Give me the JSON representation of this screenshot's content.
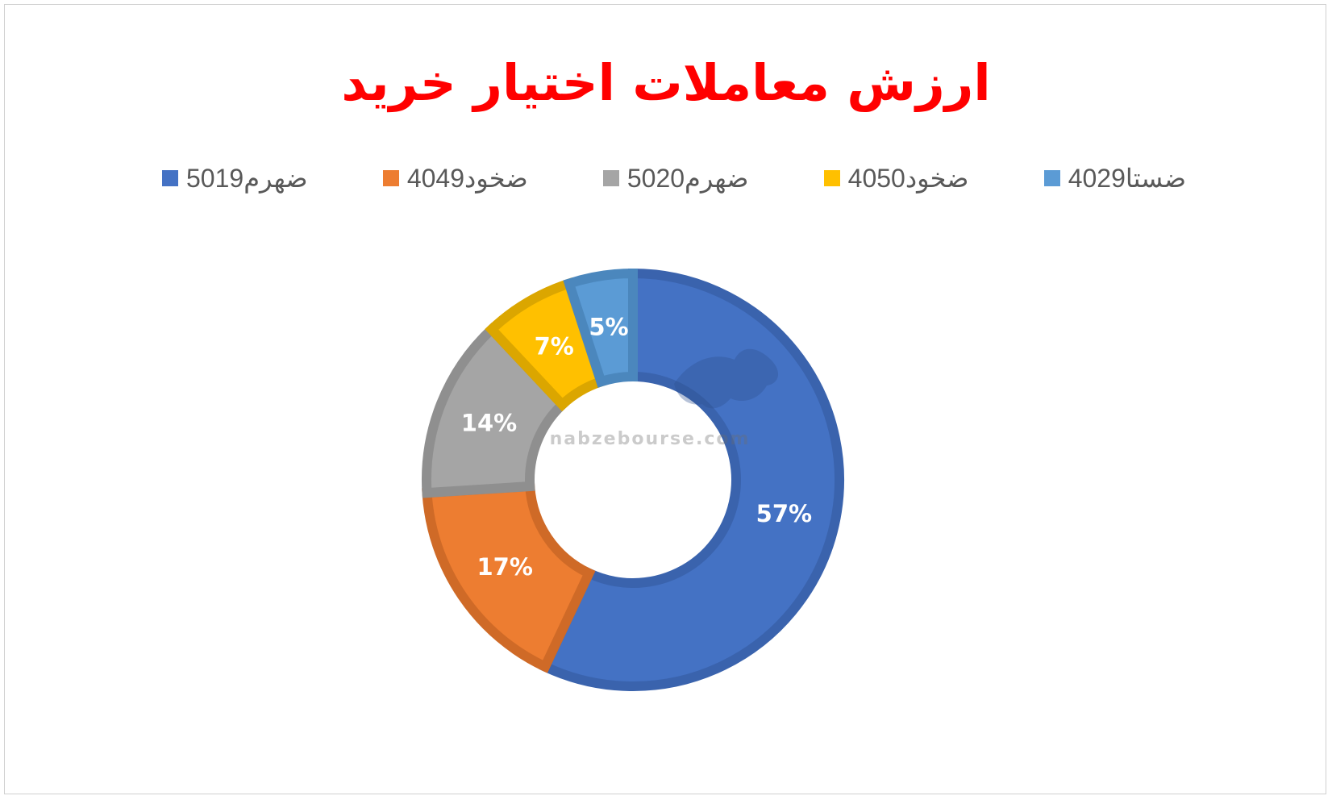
{
  "chart_data": {
    "type": "pie",
    "title": "ارزش معاملات اختیار خرید",
    "title_color": "#ff0000",
    "donut": true,
    "legend_position": "top",
    "series": [
      {
        "name": "ضهرم5019",
        "value": 57,
        "label": "57%",
        "color": "#4472c4",
        "border": "#3a63ad"
      },
      {
        "name": "ضخود4049",
        "value": 17,
        "label": "17%",
        "color": "#ed7d31",
        "border": "#cf6a27"
      },
      {
        "name": "ضهرم5020",
        "value": 14,
        "label": "14%",
        "color": "#a5a5a5",
        "border": "#8f8f8f"
      },
      {
        "name": "ضخود4050",
        "value": 7,
        "label": "7%",
        "color": "#ffc000",
        "border": "#dba600"
      },
      {
        "name": "ضستا4029",
        "value": 5,
        "label": "5%",
        "color": "#5b9bd5",
        "border": "#4b87bd"
      }
    ]
  },
  "watermark": {
    "text": "nabzebourse.com"
  }
}
